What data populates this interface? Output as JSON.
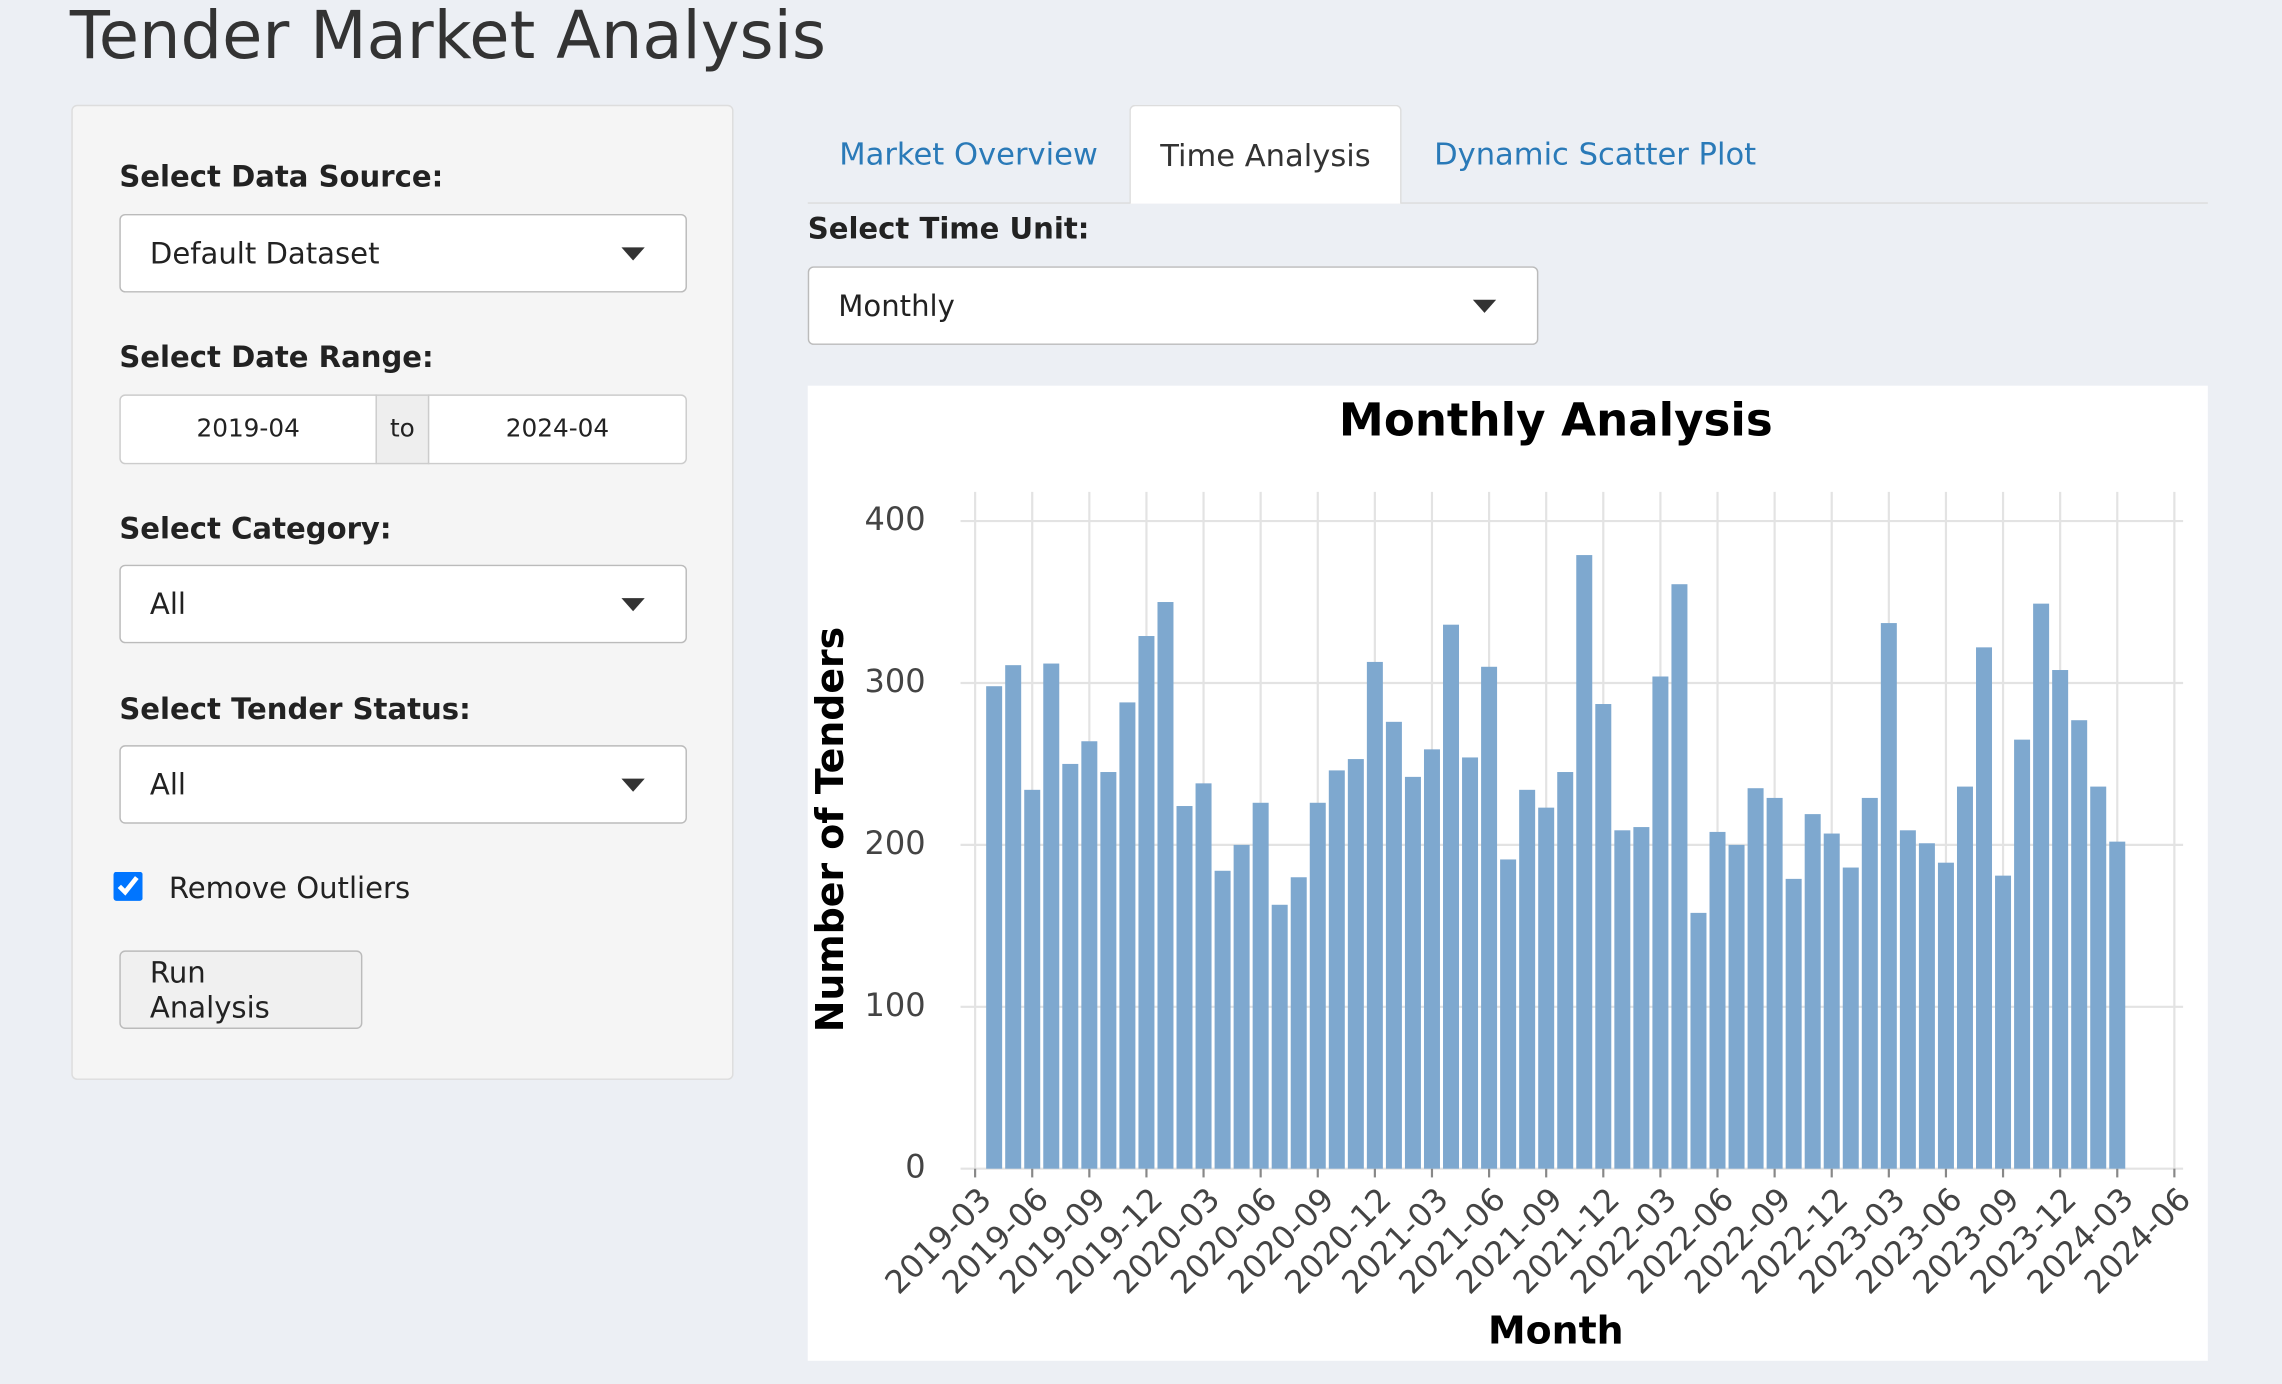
{
  "header": {
    "title": "Tender Market Analysis"
  },
  "sidebar": {
    "data_source": {
      "label": "Select Data Source:",
      "value": "Default Dataset"
    },
    "date_range": {
      "label": "Select Date Range:",
      "start": "2019-04",
      "separator": "to",
      "end": "2024-04"
    },
    "category": {
      "label": "Select Category:",
      "value": "All"
    },
    "status": {
      "label": "Select Tender Status:",
      "value": "All"
    },
    "outliers": {
      "label": "Remove Outliers",
      "checked": true
    },
    "button": "Run Analysis"
  },
  "tabs": {
    "items": [
      "Market Overview",
      "Time Analysis",
      "Dynamic Scatter Plot"
    ],
    "active": 1
  },
  "time_unit": {
    "label": "Select Time Unit:",
    "value": "Monthly"
  },
  "chart_data": {
    "type": "bar",
    "title": "Monthly Analysis",
    "x_label": "Month",
    "y_label": "Number of Tenders",
    "color": "#7ea8cf",
    "x": [
      "2019-04",
      "2019-05",
      "2019-06",
      "2019-07",
      "2019-08",
      "2019-09",
      "2019-10",
      "2019-11",
      "2019-12",
      "2020-01",
      "2020-02",
      "2020-03",
      "2020-04",
      "2020-05",
      "2020-06",
      "2020-07",
      "2020-08",
      "2020-09",
      "2020-10",
      "2020-11",
      "2020-12",
      "2021-01",
      "2021-02",
      "2021-03",
      "2021-04",
      "2021-05",
      "2021-06",
      "2021-07",
      "2021-08",
      "2021-09",
      "2021-10",
      "2021-11",
      "2021-12",
      "2022-01",
      "2022-02",
      "2022-03",
      "2022-04",
      "2022-05",
      "2022-06",
      "2022-07",
      "2022-08",
      "2022-09",
      "2022-10",
      "2022-11",
      "2022-12",
      "2023-01",
      "2023-02",
      "2023-03",
      "2023-04",
      "2023-05",
      "2023-06",
      "2023-07",
      "2023-08",
      "2023-09",
      "2023-10",
      "2023-11",
      "2023-12",
      "2024-01",
      "2024-02",
      "2024-03"
    ],
    "values": [
      298,
      311,
      234,
      312,
      250,
      264,
      245,
      288,
      329,
      350,
      224,
      238,
      184,
      200,
      226,
      163,
      180,
      226,
      246,
      253,
      313,
      276,
      242,
      259,
      336,
      254,
      310,
      191,
      234,
      223,
      245,
      379,
      287,
      209,
      211,
      304,
      361,
      158,
      208,
      200,
      235,
      229,
      179,
      219,
      207,
      186,
      229,
      337,
      209,
      201,
      189,
      236,
      322,
      181,
      265,
      349,
      308,
      277,
      236,
      202
    ],
    "xlim": [
      "2019-03",
      "2024-06"
    ],
    "xticks": [
      "2019-03",
      "2019-06",
      "2019-09",
      "2019-12",
      "2020-03",
      "2020-06",
      "2020-09",
      "2020-12",
      "2021-03",
      "2021-06",
      "2021-09",
      "2021-12",
      "2022-03",
      "2022-06",
      "2022-09",
      "2022-12",
      "2023-03",
      "2023-06",
      "2023-09",
      "2023-12",
      "2024-03",
      "2024-06"
    ],
    "ylim": [
      0,
      418
    ],
    "yticks": [
      0,
      100,
      200,
      300,
      400
    ],
    "grid": true
  }
}
